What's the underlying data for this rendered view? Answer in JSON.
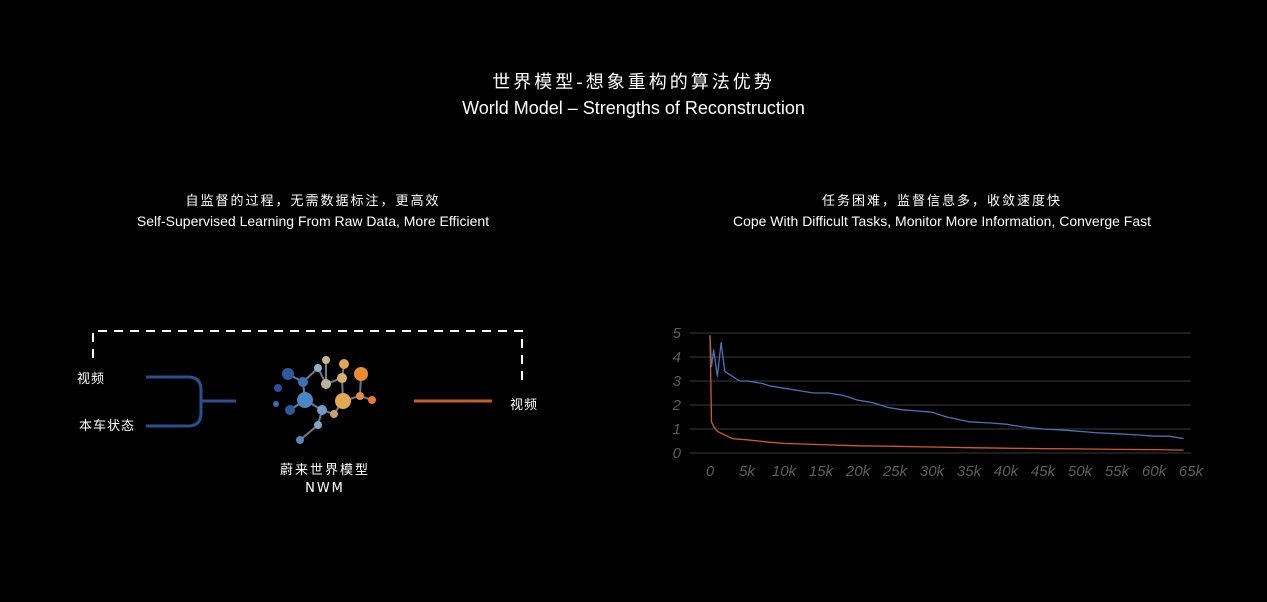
{
  "header": {
    "title_zh": "世界模型-想象重构的算法优势",
    "title_en": "World Model – Strengths of Reconstruction"
  },
  "left_panel": {
    "heading_zh": "自监督的过程，无需数据标注，更高效",
    "heading_en": "Self-Supervised Learning From Raw Data, More Efficient",
    "input_1": "视频",
    "input_2": "本车状态",
    "output": "视频",
    "model_name_zh": "蔚来世界模型",
    "model_name_en": "NWM",
    "colors": {
      "input_line": "#2a4f8e",
      "output_line": "#c85a2a",
      "dashed": "#ffffff"
    }
  },
  "right_panel": {
    "heading_zh": "任务困难，监督信息多，收敛速度快",
    "heading_en": "Cope With Difficult Tasks, Monitor More Information, Converge Fast"
  },
  "chart_data": {
    "type": "line",
    "title": "",
    "xlabel": "",
    "ylabel": "",
    "xlim": [
      0,
      65000
    ],
    "ylim": [
      0,
      5
    ],
    "x_ticks": [
      "0",
      "5k",
      "10k",
      "15k",
      "20k",
      "25k",
      "30k",
      "35k",
      "40k",
      "45k",
      "50k",
      "55k",
      "60k",
      "65k"
    ],
    "y_ticks": [
      "0",
      "1",
      "2",
      "3",
      "4",
      "5"
    ],
    "grid": true,
    "series": [
      {
        "color": "#4a72b8",
        "x": [
          0,
          200,
          500,
          1000,
          1500,
          2000,
          3000,
          4000,
          5000,
          7000,
          8000,
          10000,
          12000,
          14000,
          16000,
          18000,
          20000,
          22000,
          24000,
          26000,
          28000,
          30000,
          32000,
          35000,
          38000,
          40000,
          42000,
          45000,
          48000,
          50000,
          52000,
          55000,
          58000,
          60000,
          62000,
          64000
        ],
        "y": [
          4.9,
          3.6,
          4.3,
          3.2,
          4.6,
          3.4,
          3.2,
          3.0,
          3.0,
          2.9,
          2.8,
          2.7,
          2.6,
          2.5,
          2.5,
          2.4,
          2.2,
          2.1,
          1.9,
          1.8,
          1.75,
          1.7,
          1.5,
          1.3,
          1.25,
          1.2,
          1.1,
          1.0,
          0.95,
          0.9,
          0.85,
          0.8,
          0.75,
          0.7,
          0.7,
          0.6
        ]
      },
      {
        "color": "#d05a30",
        "x": [
          0,
          200,
          500,
          1000,
          2000,
          3000,
          5000,
          8000,
          10000,
          15000,
          20000,
          25000,
          30000,
          35000,
          40000,
          45000,
          50000,
          55000,
          60000,
          64000
        ],
        "y": [
          4.9,
          1.3,
          1.1,
          0.9,
          0.75,
          0.6,
          0.55,
          0.45,
          0.4,
          0.35,
          0.3,
          0.28,
          0.25,
          0.22,
          0.2,
          0.18,
          0.17,
          0.15,
          0.14,
          0.12
        ]
      }
    ]
  }
}
